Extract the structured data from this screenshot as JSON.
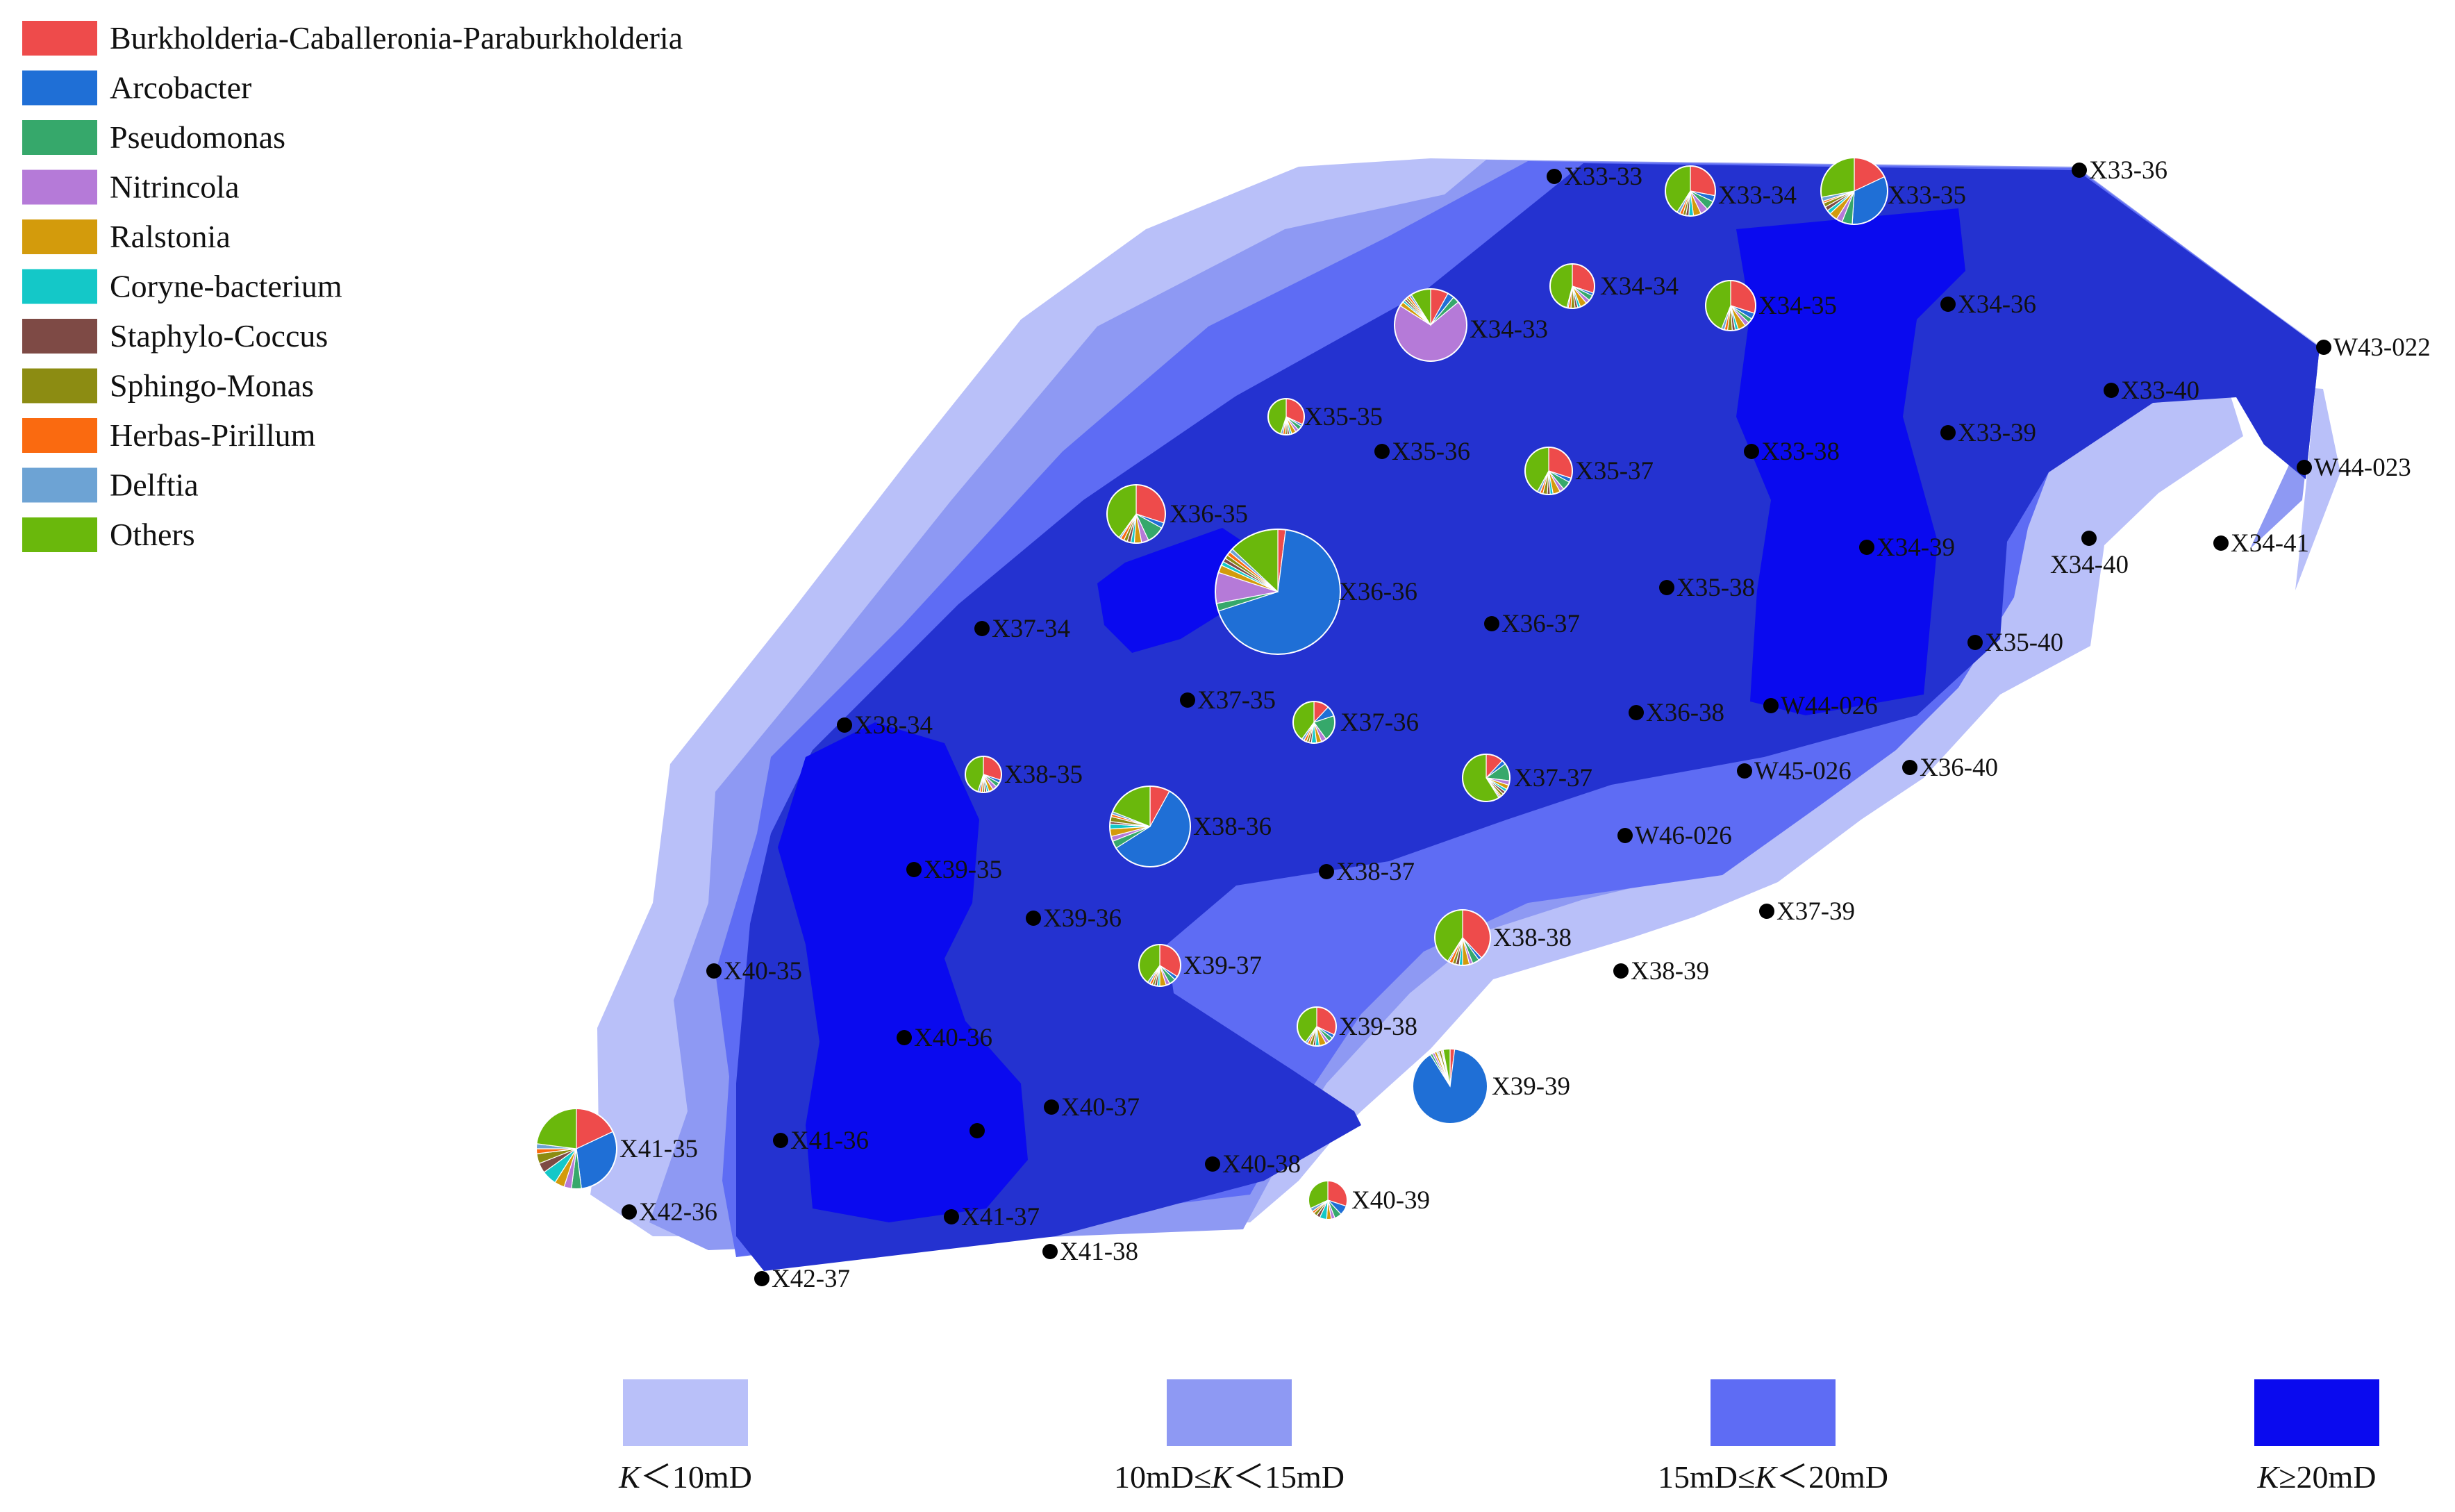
{
  "taxa_legend": [
    {
      "name": "Burkholderia-Caballeronia-Paraburkholderia",
      "color": "#ee4b4b"
    },
    {
      "name": "Arcobacter",
      "color": "#1f6fd6"
    },
    {
      "name": "Pseudomonas",
      "color": "#36a86b"
    },
    {
      "name": "Nitrincola",
      "color": "#b57ad8"
    },
    {
      "name": "Ralstonia",
      "color": "#d39b0c"
    },
    {
      "name": "Coryne-bacterium",
      "color": "#14c8c8"
    },
    {
      "name": "Staphylo-Coccus",
      "color": "#7e4a45"
    },
    {
      "name": "Sphingo-Monas",
      "color": "#8c8c12"
    },
    {
      "name": "Herbas-Pirillum",
      "color": "#fa6a10"
    },
    {
      "name": "Delftia",
      "color": "#6da3d4"
    },
    {
      "name": "Others",
      "color": "#6ab80c"
    }
  ],
  "permeability_legend": [
    {
      "prefix": "",
      "var": "K",
      "suffix": "＜10mD",
      "color": "#b9c0f9"
    },
    {
      "prefix": "10mD≤",
      "var": "K",
      "suffix": "＜15mD",
      "color": "#8e99f3"
    },
    {
      "prefix": "15mD≤",
      "var": "K",
      "suffix": "＜20mD",
      "color": "#5e6cf4"
    },
    {
      "prefix": "",
      "var": "K",
      "suffix": "≥20mD",
      "color": "#0a0aef"
    }
  ],
  "zone_colors": {
    "k_lt10": "#b9c0f9",
    "k_10_15": "#8e99f3",
    "k_15_20": "#5e6cf4",
    "k_ge20_outer": "#2432d0",
    "k_ge20_core": "#0a0aef"
  },
  "wells": [
    "X33-33",
    "X33-34",
    "X33-35",
    "X33-36",
    "X34-33",
    "X34-34",
    "X34-35",
    "X34-36",
    "W43-022",
    "X33-40",
    "W44-023",
    "X35-35",
    "X35-36",
    "X35-37",
    "X33-38",
    "X33-39",
    "X36-35",
    "X34-39",
    "X34-40",
    "X34-41",
    "X36-36",
    "X35-38",
    "X37-34",
    "X36-37",
    "X35-40",
    "X37-35",
    "X37-36",
    "X36-38",
    "W44-026",
    "X38-34",
    "W45-026",
    "X36-40",
    "X38-35",
    "X37-37",
    "X38-36",
    "W46-026",
    "X39-35",
    "X38-37",
    "X37-39",
    "X39-36",
    "X38-38",
    "X40-35",
    "X39-37",
    "X38-39",
    "X40-36",
    "X39-38",
    "X39-39",
    "X40-37",
    "X41-35",
    "X41-36",
    "X40-38",
    "X40-39",
    "X42-36",
    "X41-37",
    "X41-38",
    "X42-37"
  ],
  "extra_well_markers": 1,
  "community_pies": [
    {
      "well": "X33-34",
      "fractions": [
        0.28,
        0.04,
        0.06,
        0.05,
        0.05,
        0.03,
        0.02,
        0.02,
        0.02,
        0.02,
        0.41
      ]
    },
    {
      "well": "X33-35",
      "fractions": [
        0.18,
        0.33,
        0.05,
        0.03,
        0.04,
        0.02,
        0.02,
        0.02,
        0.01,
        0.02,
        0.28
      ]
    },
    {
      "well": "X34-33",
      "fractions": [
        0.08,
        0.03,
        0.03,
        0.7,
        0.02,
        0.01,
        0.01,
        0.01,
        0.01,
        0.01,
        0.09
      ]
    },
    {
      "well": "X34-34",
      "fractions": [
        0.3,
        0.02,
        0.04,
        0.03,
        0.05,
        0.02,
        0.02,
        0.03,
        0.02,
        0.01,
        0.46
      ]
    },
    {
      "well": "X34-35",
      "fractions": [
        0.3,
        0.04,
        0.03,
        0.03,
        0.05,
        0.02,
        0.02,
        0.03,
        0.02,
        0.02,
        0.44
      ]
    },
    {
      "well": "X35-35",
      "fractions": [
        0.32,
        0.02,
        0.04,
        0.03,
        0.04,
        0.02,
        0.02,
        0.02,
        0.02,
        0.02,
        0.45
      ]
    },
    {
      "well": "X35-37",
      "fractions": [
        0.3,
        0.03,
        0.06,
        0.03,
        0.05,
        0.02,
        0.02,
        0.03,
        0.02,
        0.02,
        0.42
      ]
    },
    {
      "well": "X36-35",
      "fractions": [
        0.3,
        0.03,
        0.1,
        0.04,
        0.04,
        0.02,
        0.02,
        0.02,
        0.02,
        0.01,
        0.4
      ]
    },
    {
      "well": "X36-36",
      "fractions": [
        0.02,
        0.68,
        0.02,
        0.08,
        0.02,
        0.01,
        0.01,
        0.01,
        0.01,
        0.01,
        0.13
      ]
    },
    {
      "well": "X37-36",
      "fractions": [
        0.12,
        0.08,
        0.2,
        0.04,
        0.04,
        0.04,
        0.02,
        0.02,
        0.02,
        0.02,
        0.4
      ]
    },
    {
      "well": "X38-35",
      "fractions": [
        0.3,
        0.03,
        0.04,
        0.04,
        0.04,
        0.02,
        0.02,
        0.02,
        0.02,
        0.02,
        0.45
      ]
    },
    {
      "well": "X37-37",
      "fractions": [
        0.12,
        0.03,
        0.12,
        0.03,
        0.03,
        0.02,
        0.02,
        0.02,
        0.01,
        0.01,
        0.59
      ]
    },
    {
      "well": "X38-36",
      "fractions": [
        0.08,
        0.58,
        0.03,
        0.02,
        0.03,
        0.02,
        0.01,
        0.02,
        0.01,
        0.01,
        0.19
      ]
    },
    {
      "well": "X38-38",
      "fractions": [
        0.38,
        0.02,
        0.04,
        0.02,
        0.04,
        0.02,
        0.02,
        0.02,
        0.02,
        0.01,
        0.41
      ]
    },
    {
      "well": "X39-37",
      "fractions": [
        0.34,
        0.03,
        0.05,
        0.03,
        0.05,
        0.02,
        0.02,
        0.02,
        0.02,
        0.02,
        0.4
      ]
    },
    {
      "well": "X39-38",
      "fractions": [
        0.32,
        0.03,
        0.04,
        0.03,
        0.06,
        0.03,
        0.02,
        0.03,
        0.02,
        0.02,
        0.4
      ]
    },
    {
      "well": "X39-39",
      "fractions": [
        0.02,
        0.9,
        0.01,
        0.01,
        0.01,
        0.005,
        0.005,
        0.01,
        0.005,
        0.005,
        0.03
      ]
    },
    {
      "well": "X41-35",
      "fractions": [
        0.18,
        0.3,
        0.04,
        0.03,
        0.04,
        0.06,
        0.04,
        0.04,
        0.02,
        0.02,
        0.23
      ]
    },
    {
      "well": "X40-39",
      "fractions": [
        0.3,
        0.08,
        0.06,
        0.03,
        0.04,
        0.06,
        0.03,
        0.03,
        0.02,
        0.03,
        0.32
      ]
    }
  ]
}
